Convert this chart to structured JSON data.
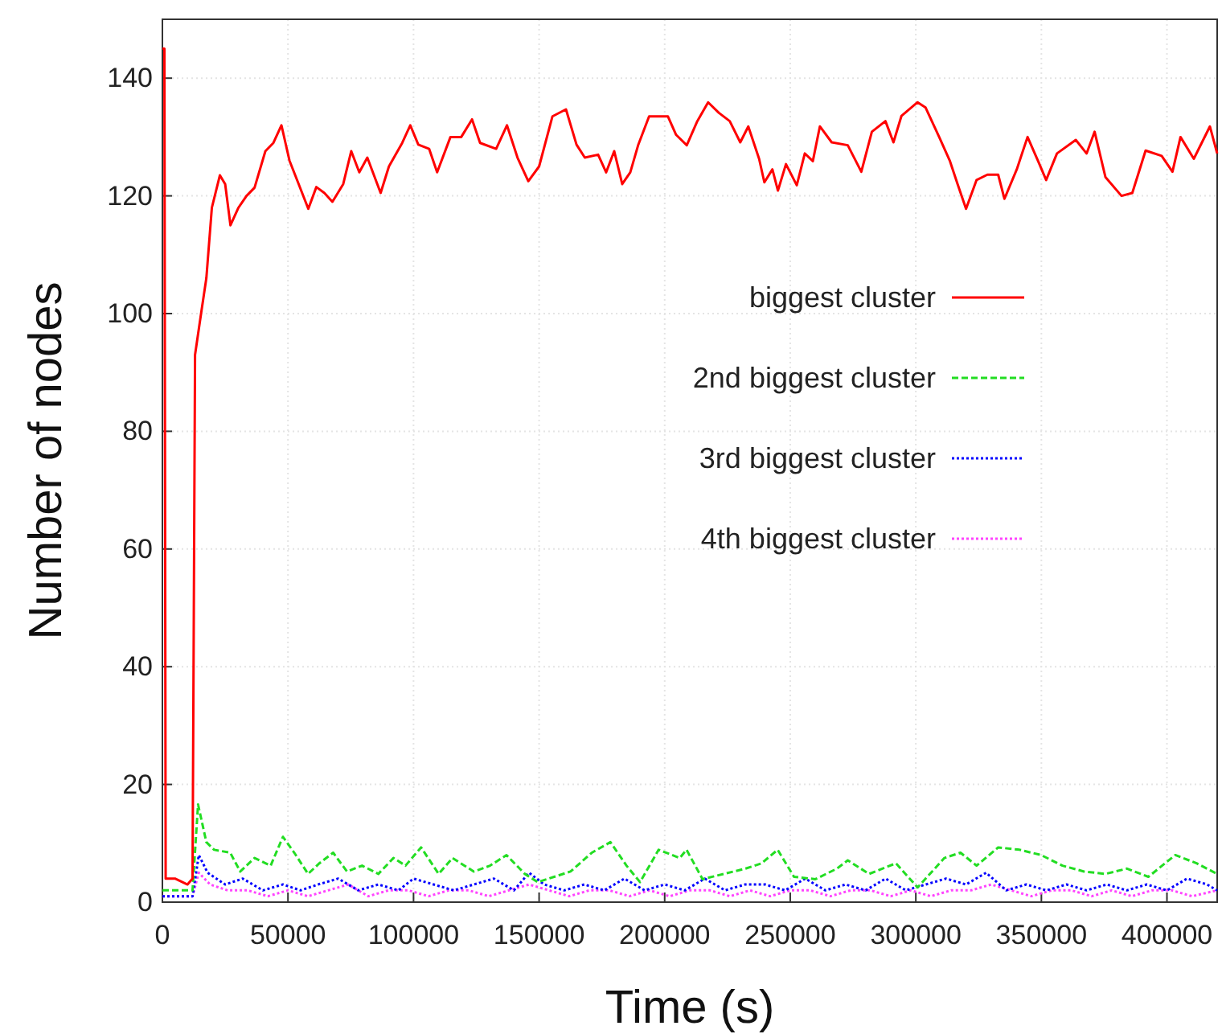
{
  "chart_data": {
    "type": "line",
    "xlabel": "Time (s)",
    "ylabel": "Number of nodes",
    "xlim": [
      0,
      420000
    ],
    "xticks": [
      0,
      50000,
      100000,
      150000,
      200000,
      250000,
      300000,
      350000,
      400000
    ],
    "ylim": [
      0,
      150
    ],
    "yticks": [
      0,
      20,
      40,
      60,
      80,
      100,
      120,
      140
    ],
    "grid": true,
    "legend": "right",
    "marker": "none",
    "series": [
      {
        "name": "biggest cluster",
        "color": "#ff0000",
        "line_style": "solid",
        "x": [
          0,
          800,
          1300,
          5000,
          10000,
          12000,
          13000,
          15400,
          17500,
          19700,
          22900,
          25000,
          27100,
          30300,
          33500,
          36700,
          41000,
          44200,
          47400,
          50600,
          53800,
          58100,
          61300,
          64500,
          67700,
          72000,
          75200,
          78400,
          81600,
          86900,
          90200,
          95500,
          98700,
          101900,
          106200,
          109400,
          114700,
          119000,
          123300,
          126500,
          132900,
          137200,
          141400,
          145700,
          150000,
          155300,
          160700,
          164900,
          168200,
          173500,
          176700,
          179900,
          183100,
          186300,
          189500,
          193800,
          201300,
          204500,
          208800,
          213000,
          217300,
          221600,
          225900,
          230100,
          233300,
          237600,
          239700,
          242900,
          245100,
          248300,
          252600,
          255800,
          259000,
          261800,
          266500,
          272900,
          278300,
          282500,
          287900,
          291100,
          294300,
          300700,
          303900,
          309300,
          313600,
          316800,
          320000,
          324200,
          328500,
          332800,
          335300,
          340200,
          344500,
          348700,
          351900,
          356200,
          363700,
          368000,
          371200,
          375500,
          381900,
          386200,
          391500,
          397900,
          402200,
          405400,
          410700,
          417100,
          420000
        ],
        "values": [
          145,
          145,
          4,
          4,
          3,
          4,
          93,
          100,
          106,
          118,
          123.5,
          122,
          115,
          118,
          120,
          121.4,
          127.6,
          129,
          132,
          126,
          122.5,
          117.8,
          121.5,
          120.5,
          119,
          122,
          127.6,
          124,
          126.5,
          120.5,
          125,
          129,
          132,
          128.7,
          128,
          124,
          130,
          130,
          133,
          129,
          128,
          132,
          126.5,
          122.5,
          125,
          133.5,
          134.7,
          128.7,
          126.5,
          127,
          124,
          127.6,
          122,
          124,
          128.7,
          133.5,
          133.5,
          130.4,
          128.6,
          132.7,
          135.9,
          134.1,
          132.7,
          129.1,
          131.8,
          126.3,
          122.3,
          124.5,
          120.9,
          125.4,
          121.8,
          127.2,
          125.9,
          131.8,
          129.1,
          128.6,
          124.1,
          130.9,
          132.7,
          129.1,
          133.6,
          135.9,
          135,
          130,
          125.9,
          121.8,
          117.8,
          122.7,
          123.6,
          123.6,
          119.5,
          124.5,
          130,
          125.9,
          122.7,
          127.2,
          129.5,
          127.2,
          130.9,
          123.2,
          120,
          120.5,
          127.7,
          126.8,
          124.1,
          130,
          126.3,
          131.8,
          127.2
        ]
      },
      {
        "name": "2nd biggest cluster",
        "color": "#22dd22",
        "line_style": "dashed",
        "x": [
          0,
          5000,
          12000,
          14200,
          17500,
          20600,
          27000,
          31000,
          36700,
          43100,
          48000,
          52500,
          58000,
          62500,
          68000,
          73500,
          79500,
          86000,
          92000,
          96800,
          103000,
          110000,
          115500,
          124000,
          130500,
          137000,
          144300,
          149500,
          156000,
          162500,
          171000,
          178400,
          184800,
          190200,
          197600,
          206000,
          208700,
          215100,
          223600,
          232200,
          238600,
          245000,
          251500,
          260000,
          268600,
          272900,
          281400,
          292100,
          300700,
          311400,
          317800,
          324200,
          332800,
          341300,
          349900,
          358400,
          367000,
          375500,
          384100,
          392600,
          403300,
          411800,
          420000
        ],
        "values": [
          2,
          2,
          2,
          16.6,
          10.2,
          8.9,
          8.4,
          5.2,
          7.5,
          6.2,
          11.1,
          8.4,
          4.8,
          6.6,
          8.4,
          5.2,
          6.2,
          4.8,
          7.5,
          6.2,
          9.3,
          4.8,
          7.5,
          5.2,
          6.2,
          8,
          4.8,
          3.4,
          4.3,
          5.2,
          8.4,
          10.2,
          6.2,
          3.4,
          8.9,
          7.5,
          8.9,
          3.9,
          4.8,
          5.7,
          6.6,
          8.9,
          4.3,
          3.9,
          5.7,
          7.1,
          4.8,
          6.6,
          2.5,
          7.5,
          8.4,
          6.2,
          9.3,
          8.9,
          8,
          6.2,
          5.2,
          4.8,
          5.7,
          4.3,
          8,
          6.6,
          4.8
        ]
      },
      {
        "name": "3rd biggest cluster",
        "color": "#0000ff",
        "line_style": "dotted",
        "x": [
          0,
          5000,
          12000,
          14500,
          18000,
          25000,
          32000,
          40000,
          48000,
          55000,
          62000,
          70000,
          78000,
          86000,
          94000,
          100000,
          108000,
          116000,
          124000,
          132000,
          140000,
          146000,
          152000,
          160000,
          168000,
          176000,
          184000,
          192000,
          200000,
          208000,
          216000,
          224000,
          232000,
          240000,
          248000,
          256000,
          264000,
          272000,
          280000,
          288000,
          296000,
          304000,
          312000,
          320000,
          328000,
          336000,
          344000,
          352000,
          360000,
          368000,
          376000,
          384000,
          392000,
          400000,
          408000,
          416000,
          420000
        ],
        "values": [
          1,
          1,
          1,
          8,
          5,
          3,
          4,
          2,
          3,
          2,
          3,
          4,
          2,
          3,
          2,
          4,
          3,
          2,
          3,
          4,
          2,
          5,
          3,
          2,
          3,
          2,
          4,
          2,
          3,
          2,
          4,
          2,
          3,
          3,
          2,
          4,
          2,
          3,
          2,
          4,
          2,
          3,
          4,
          3,
          5,
          2,
          3,
          2,
          3,
          2,
          3,
          2,
          3,
          2,
          4,
          3,
          2
        ]
      },
      {
        "name": "4th biggest cluster",
        "color": "#ff44ff",
        "line_style": "dotted",
        "x": [
          0,
          5000,
          12000,
          14500,
          19000,
          26000,
          34000,
          42000,
          50000,
          58000,
          66000,
          74000,
          82000,
          90000,
          98000,
          106000,
          114000,
          122000,
          130000,
          138000,
          146000,
          154000,
          162000,
          170000,
          178000,
          186000,
          194000,
          202000,
          210000,
          218000,
          226000,
          234000,
          242000,
          250000,
          258000,
          266000,
          274000,
          282000,
          290000,
          298000,
          306000,
          314000,
          322000,
          330000,
          338000,
          346000,
          354000,
          362000,
          370000,
          378000,
          386000,
          394000,
          402000,
          410000,
          420000
        ],
        "values": [
          1,
          1,
          1,
          5,
          3,
          2,
          2,
          1,
          2,
          1,
          2,
          3,
          1,
          2,
          2,
          1,
          2,
          2,
          1,
          2,
          3,
          2,
          1,
          2,
          2,
          1,
          2,
          1,
          2,
          2,
          1,
          2,
          1,
          2,
          2,
          1,
          2,
          2,
          1,
          2,
          1,
          2,
          2,
          3,
          2,
          1,
          2,
          2,
          1,
          2,
          1,
          2,
          2,
          1,
          2
        ]
      }
    ]
  }
}
